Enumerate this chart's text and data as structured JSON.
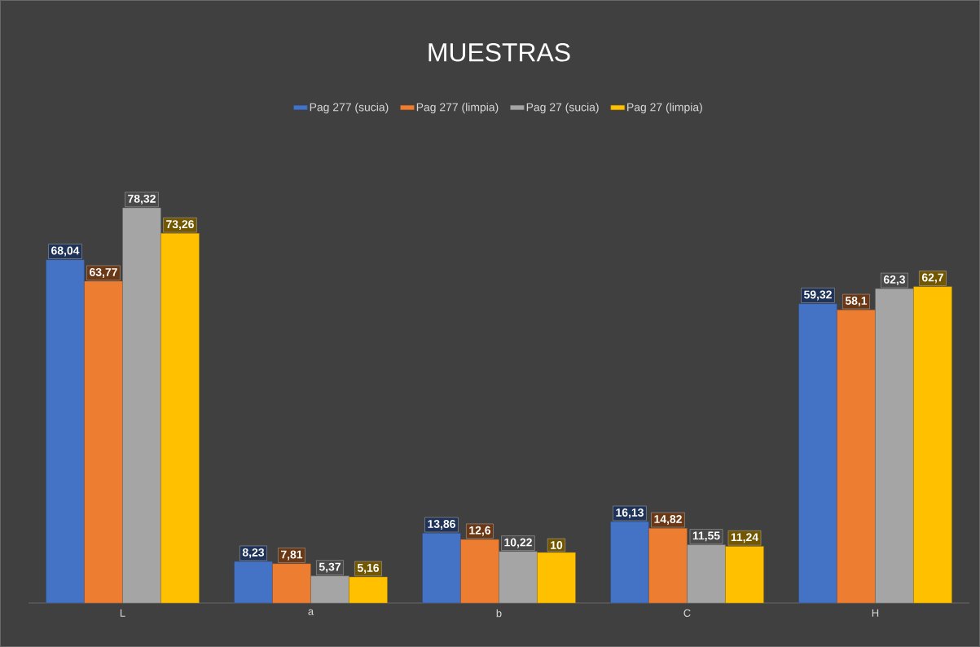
{
  "chart_data": {
    "type": "bar",
    "title": "MUESTRAS",
    "categories": [
      "L",
      "a",
      "b",
      "C",
      "H"
    ],
    "legend": "top",
    "series": [
      {
        "name": "Pag 277 (sucia)",
        "color": "#4472c4",
        "values": [
          68.04,
          8.23,
          13.86,
          16.13,
          59.32
        ],
        "value_labels": [
          "68,04",
          "8,23",
          "13,86",
          "16,13",
          "59,32"
        ]
      },
      {
        "name": "Pag 277 (limpia)",
        "color": "#ed7d31",
        "values": [
          63.77,
          7.81,
          12.6,
          14.82,
          58.1
        ],
        "value_labels": [
          "63,77",
          "7,81",
          "12,6",
          "14,82",
          "58,1"
        ]
      },
      {
        "name": "Pag 27 (sucia)",
        "color": "#a5a5a5",
        "values": [
          78.32,
          5.37,
          10.22,
          11.55,
          62.3
        ],
        "value_labels": [
          "78,32",
          "5,37",
          "10,22",
          "11,55",
          "62,3"
        ]
      },
      {
        "name": "Pag 27 (limpia)",
        "color": "#ffc000",
        "values": [
          73.26,
          5.16,
          10,
          11.24,
          62.7
        ],
        "value_labels": [
          "73,26",
          "5,16",
          "10",
          "11,24",
          "62,7"
        ]
      }
    ]
  }
}
